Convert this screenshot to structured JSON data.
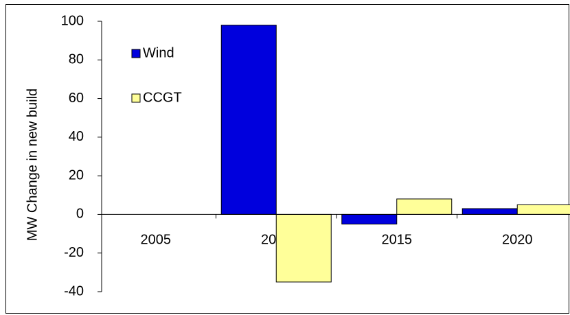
{
  "chart_data": {
    "type": "bar",
    "ylabel": "MW Change in new build",
    "categories": [
      "2005",
      "2010",
      "2015",
      "2020"
    ],
    "series": [
      {
        "name": "Wind",
        "color": "#0000dd",
        "values": [
          0,
          98,
          -5,
          3
        ]
      },
      {
        "name": "CCGT",
        "color": "#ffff99",
        "values": [
          0,
          -35,
          8,
          5
        ]
      }
    ],
    "ylim": [
      -40,
      100
    ],
    "yticks": [
      -40,
      -20,
      0,
      20,
      40,
      60,
      80,
      100
    ],
    "grid": false,
    "legend": "top-left"
  }
}
